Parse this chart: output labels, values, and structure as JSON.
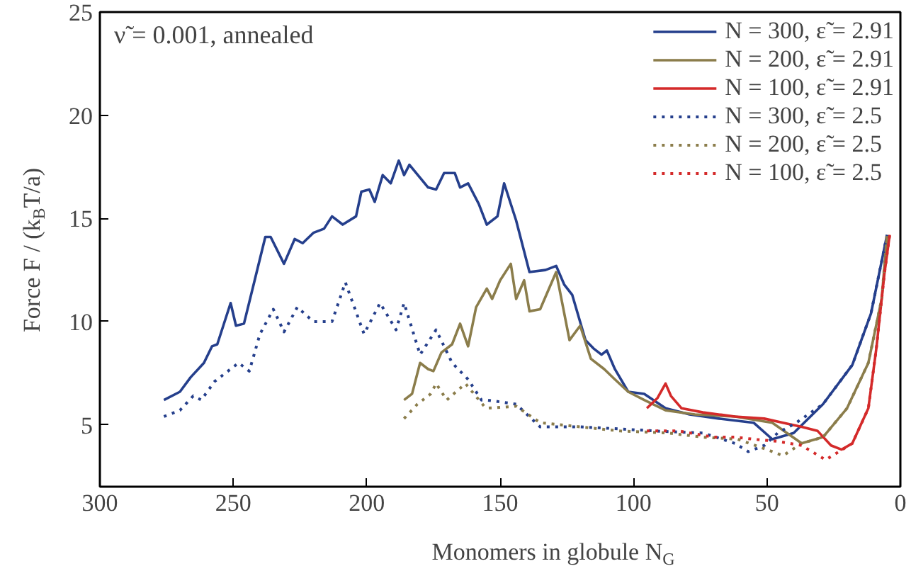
{
  "chart_data": {
    "type": "line",
    "xlabel": "Monomers in globule N$_{G}$",
    "ylabel": "Force F / (k$_{B}$T/a)",
    "annotations": [
      "ν̃ = 0.001, annealed"
    ],
    "xlim": [
      300,
      0
    ],
    "ylim": [
      2,
      25
    ],
    "xticks": [
      300,
      250,
      200,
      150,
      100,
      50,
      0
    ],
    "yticks": [
      5,
      10,
      15,
      20,
      25
    ],
    "grid": false,
    "legend": "top right",
    "series": [
      {
        "name": "N = 300, ε̃ = 2.91",
        "color": "#253f8c",
        "line_style": "solid",
        "x": [
          276,
          270,
          266,
          261,
          258,
          256,
          251,
          249,
          246,
          242,
          238,
          236,
          231,
          227,
          224,
          220,
          216,
          213,
          209,
          204,
          202,
          199,
          197,
          194,
          191,
          188,
          186,
          184,
          177,
          174,
          171,
          167,
          165,
          162,
          158,
          155,
          151,
          148.5,
          144,
          139,
          133,
          129,
          126,
          123,
          118,
          115,
          112,
          110,
          107,
          102,
          96,
          88,
          79,
          68,
          55,
          48,
          40,
          29,
          18,
          11,
          5
        ],
        "values": [
          6.2,
          6.6,
          7.3,
          8.0,
          8.8,
          8.9,
          10.9,
          9.8,
          9.9,
          12.0,
          14.1,
          14.1,
          12.8,
          14.0,
          13.8,
          14.3,
          14.5,
          15.1,
          14.7,
          15.1,
          16.3,
          16.4,
          15.8,
          17.1,
          16.7,
          17.8,
          17.1,
          17.6,
          16.5,
          16.4,
          17.2,
          17.2,
          16.5,
          16.7,
          15.7,
          14.7,
          15.1,
          16.7,
          14.9,
          12.4,
          12.5,
          12.7,
          11.8,
          11.3,
          9.1,
          8.7,
          8.4,
          8.6,
          7.7,
          6.6,
          6.5,
          5.8,
          5.5,
          5.3,
          5.1,
          4.3,
          4.6,
          6.0,
          7.9,
          10.4,
          14.2
        ]
      },
      {
        "name": "N = 200, ε̃ = 2.91",
        "color": "#8b7d4b",
        "line_style": "solid",
        "x": [
          186,
          183,
          180,
          177,
          175,
          172,
          168,
          165,
          162,
          159,
          155,
          153,
          150,
          146,
          144,
          141,
          139,
          135,
          129,
          124,
          120,
          116,
          111,
          107,
          102,
          96,
          88,
          77,
          62,
          48,
          37,
          29,
          20,
          12,
          7,
          5
        ],
        "values": [
          6.2,
          6.5,
          8.0,
          7.7,
          7.6,
          8.5,
          8.9,
          9.9,
          8.8,
          10.7,
          11.6,
          11.1,
          12.0,
          12.8,
          11.1,
          12.0,
          10.5,
          10.6,
          12.4,
          9.1,
          9.8,
          8.2,
          7.7,
          7.2,
          6.6,
          6.2,
          5.7,
          5.5,
          5.4,
          5.1,
          4.1,
          4.4,
          5.8,
          8.0,
          11.1,
          14.2
        ]
      },
      {
        "name": "N = 100, ε̃ = 2.91",
        "color": "#d42a2a",
        "line_style": "solid",
        "x": [
          95,
          91,
          88,
          86,
          82,
          74,
          62,
          51,
          44,
          37,
          31,
          26,
          22,
          18,
          12,
          9,
          6,
          4
        ],
        "values": [
          5.8,
          6.3,
          7.0,
          6.4,
          5.8,
          5.6,
          5.4,
          5.3,
          5.1,
          4.9,
          4.7,
          4.0,
          3.8,
          4.1,
          5.8,
          8.7,
          12.3,
          14.2
        ]
      },
      {
        "name": "N = 300, ε̃ = 2.5",
        "color": "#253f8c",
        "line_style": "dotted",
        "x": [
          276,
          270,
          265,
          262,
          257,
          251,
          248,
          244,
          240,
          235,
          231,
          226,
          220,
          213,
          208,
          201,
          195,
          189,
          186,
          180,
          174,
          168,
          162,
          157,
          155,
          144,
          135,
          120,
          105,
          92,
          74,
          62,
          57,
          51,
          46,
          39,
          29,
          18,
          11,
          5
        ],
        "values": [
          5.4,
          5.7,
          6.4,
          6.2,
          7.1,
          7.7,
          8.0,
          7.6,
          9.4,
          10.6,
          9.5,
          10.7,
          10.0,
          10.0,
          11.9,
          9.4,
          10.9,
          9.6,
          10.9,
          8.4,
          9.6,
          8.0,
          7.2,
          6.2,
          6.2,
          6.0,
          4.9,
          4.9,
          4.8,
          4.7,
          4.6,
          4.1,
          3.7,
          4.0,
          4.6,
          5.1,
          6.0,
          7.9,
          10.4,
          14.2
        ]
      },
      {
        "name": "N = 200, ε̃ = 2.5",
        "color": "#8b7d4b",
        "line_style": "dotted",
        "x": [
          186,
          181,
          176,
          174,
          170,
          163,
          156,
          155,
          144,
          135,
          120,
          105,
          87,
          74,
          61,
          50,
          44,
          37,
          29,
          20,
          12,
          7,
          5
        ],
        "values": [
          5.3,
          6.0,
          6.5,
          7.0,
          6.2,
          7.0,
          5.9,
          5.8,
          5.9,
          5.1,
          4.9,
          4.7,
          4.6,
          4.4,
          4.3,
          3.8,
          3.5,
          4.1,
          4.4,
          5.8,
          8.0,
          11.1,
          14.2
        ]
      },
      {
        "name": "N = 100, ε̃ = 2.5",
        "color": "#d42a2a",
        "line_style": "dotted",
        "x": [
          95,
          83,
          70,
          62,
          55,
          46,
          37,
          28,
          23,
          18,
          12,
          9,
          6,
          4
        ],
        "values": [
          4.7,
          4.7,
          4.4,
          4.4,
          4.3,
          4.2,
          4.0,
          3.3,
          3.7,
          4.1,
          5.8,
          8.7,
          12.3,
          14.2
        ]
      }
    ]
  }
}
